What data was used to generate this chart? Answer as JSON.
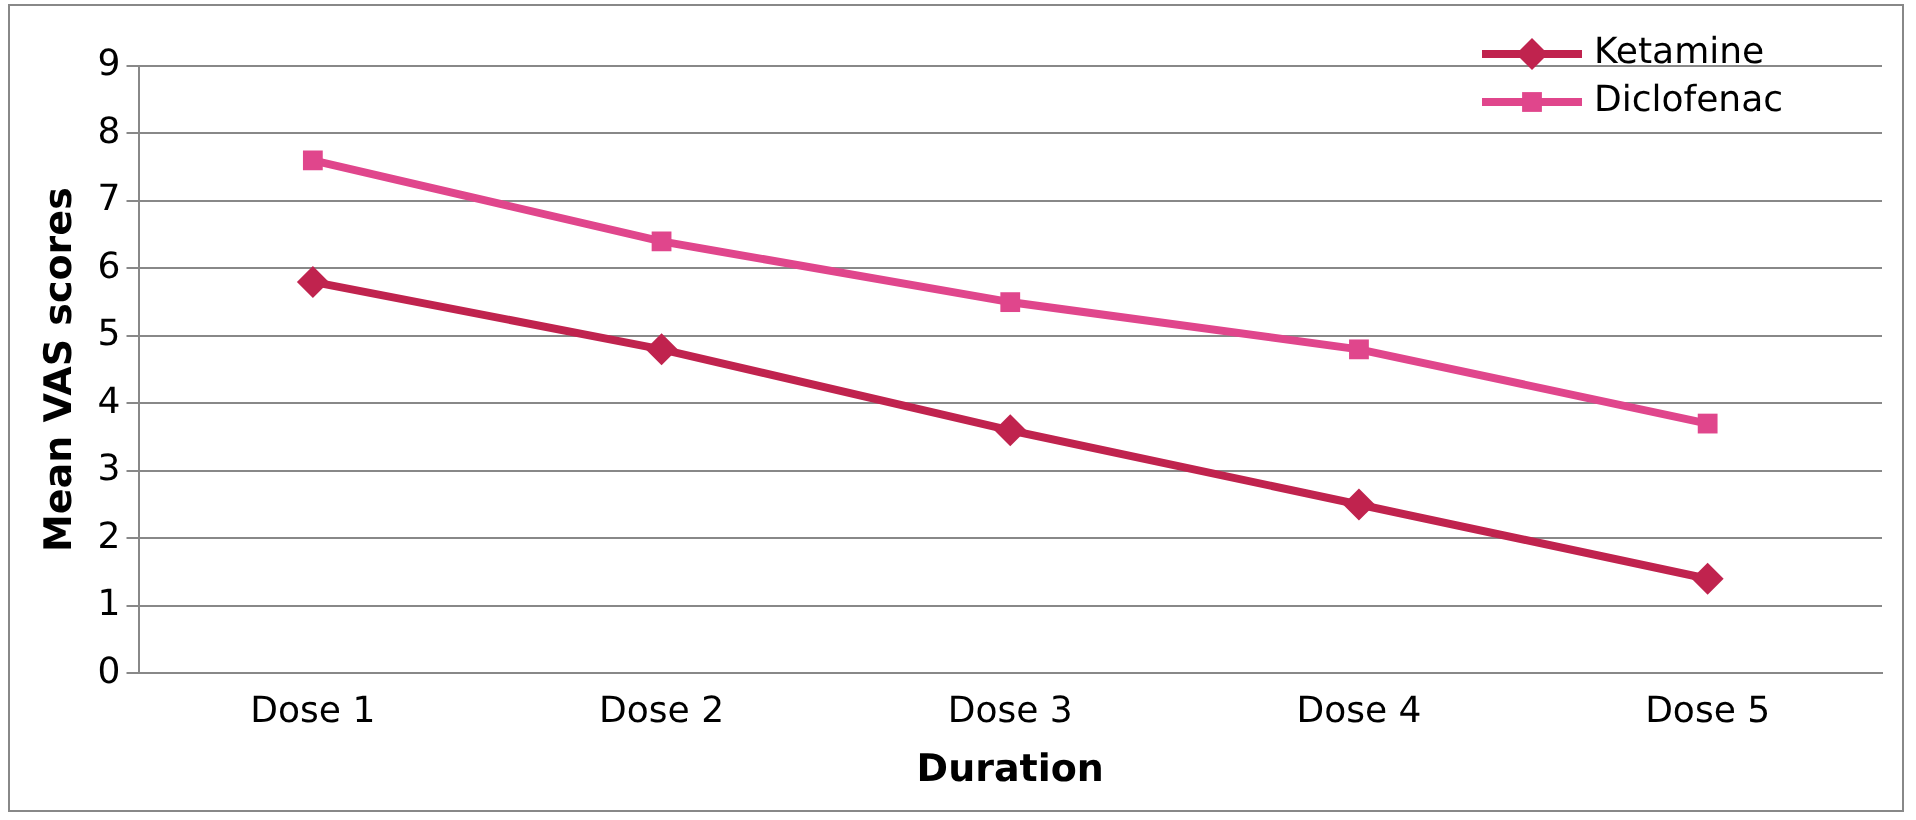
{
  "chart_data": {
    "type": "line",
    "xlabel": "Duration",
    "ylabel": "Mean VAS scores",
    "categories": [
      "Dose 1",
      "Dose 2",
      "Dose 3",
      "Dose 4",
      "Dose 5"
    ],
    "series": [
      {
        "name": "Ketamine",
        "color": "#c0234e",
        "marker": "diamond",
        "values": [
          5.8,
          4.8,
          3.6,
          2.5,
          1.4
        ]
      },
      {
        "name": "Diclofenac",
        "color": "#e0468c",
        "marker": "square",
        "values": [
          7.6,
          6.4,
          5.5,
          4.8,
          3.7
        ]
      }
    ],
    "ylim": [
      0,
      9
    ],
    "yticks": [
      0,
      1,
      2,
      3,
      4,
      5,
      6,
      7,
      8,
      9
    ],
    "grid": "y",
    "legend": "top right",
    "line_style": "solid"
  }
}
